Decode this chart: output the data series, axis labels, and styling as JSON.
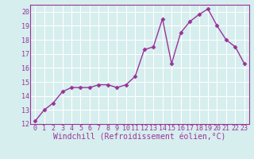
{
  "x": [
    0,
    1,
    2,
    3,
    4,
    5,
    6,
    7,
    8,
    9,
    10,
    11,
    12,
    13,
    14,
    15,
    16,
    17,
    18,
    19,
    20,
    21,
    22,
    23
  ],
  "y": [
    12.2,
    13.0,
    13.5,
    14.3,
    14.6,
    14.6,
    14.6,
    14.8,
    14.8,
    14.6,
    14.8,
    15.4,
    17.3,
    17.5,
    19.5,
    16.3,
    18.5,
    19.3,
    19.8,
    20.2,
    19.0,
    18.0,
    17.5,
    16.3
  ],
  "line_color": "#993399",
  "marker": "D",
  "markersize": 2.5,
  "linewidth": 1.0,
  "xlabel": "Windchill (Refroidissement éolien,°C)",
  "ylim": [
    12,
    20.5
  ],
  "xlim": [
    -0.5,
    23.5
  ],
  "yticks": [
    12,
    13,
    14,
    15,
    16,
    17,
    18,
    19,
    20
  ],
  "xticks": [
    0,
    1,
    2,
    3,
    4,
    5,
    6,
    7,
    8,
    9,
    10,
    11,
    12,
    13,
    14,
    15,
    16,
    17,
    18,
    19,
    20,
    21,
    22,
    23
  ],
  "background_color": "#d6eeee",
  "grid_color": "#b8d8d8",
  "label_color": "#993399",
  "xlabel_fontsize": 7.0,
  "tick_fontsize": 6.0
}
